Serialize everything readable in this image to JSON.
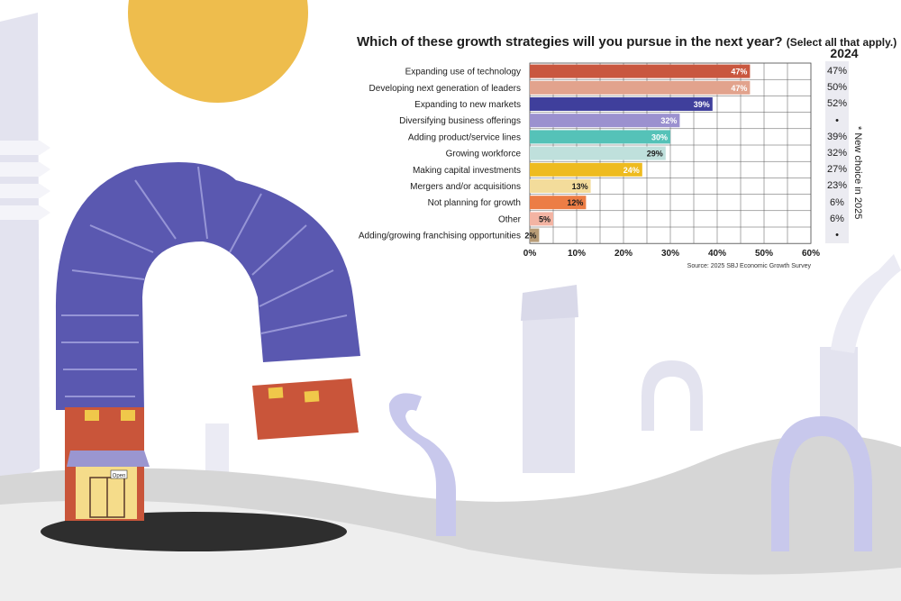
{
  "chart_data": {
    "type": "bar",
    "orientation": "horizontal",
    "title": "Which of these growth strategies will you pursue in the next year?",
    "subtitle": "(Select all that apply.)",
    "categories": [
      "Expanding use of technology",
      "Developing next generation of leaders",
      "Expanding to new markets",
      "Diversifying business offerings",
      "Adding product/service lines",
      "Growing workforce",
      "Making capital investments",
      "Mergers and/or acquisitions",
      "Not planning for growth",
      "Other",
      "Adding/growing franchising opportunities"
    ],
    "values": [
      47,
      47,
      39,
      32,
      30,
      29,
      24,
      13,
      12,
      5,
      2
    ],
    "value_labels": [
      "47%",
      "47%",
      "39%",
      "32%",
      "30%",
      "29%",
      "24%",
      "13%",
      "12%",
      "5%",
      "2%"
    ],
    "bar_colors": [
      "#c9573f",
      "#e2a38d",
      "#3f3f9c",
      "#9b91cf",
      "#55c2b8",
      "#bfe0dc",
      "#eebb1f",
      "#f3dc9b",
      "#ec7d45",
      "#f3b4a3",
      "#b89c76"
    ],
    "label_colors": [
      "#ffffff",
      "#ffffff",
      "#ffffff",
      "#ffffff",
      "#ffffff",
      "#1c1c1c",
      "#ffffff",
      "#1c1c1c",
      "#1c1c1c",
      "#1c1c1c",
      "#1c1c1c"
    ],
    "xlim": [
      0,
      60
    ],
    "xticks": [
      "0%",
      "10%",
      "20%",
      "30%",
      "40%",
      "50%",
      "60%"
    ],
    "grid": true,
    "comparison_header": "2024",
    "comparison_values": [
      "47%",
      "50%",
      "52%",
      "•",
      "39%",
      "32%",
      "27%",
      "23%",
      "6%",
      "6%",
      "•"
    ],
    "note": "* New choice in 2025",
    "source": "Source: 2025 SBJ Economic Growth Survey"
  },
  "illustration": {
    "sign_text": "Open",
    "colors": {
      "sun": "#eebd4d",
      "duct": "#5a58b0",
      "brick": "#c9553a",
      "pale_duct": "#e2e2ee",
      "hill": "#d4d4d4"
    }
  }
}
